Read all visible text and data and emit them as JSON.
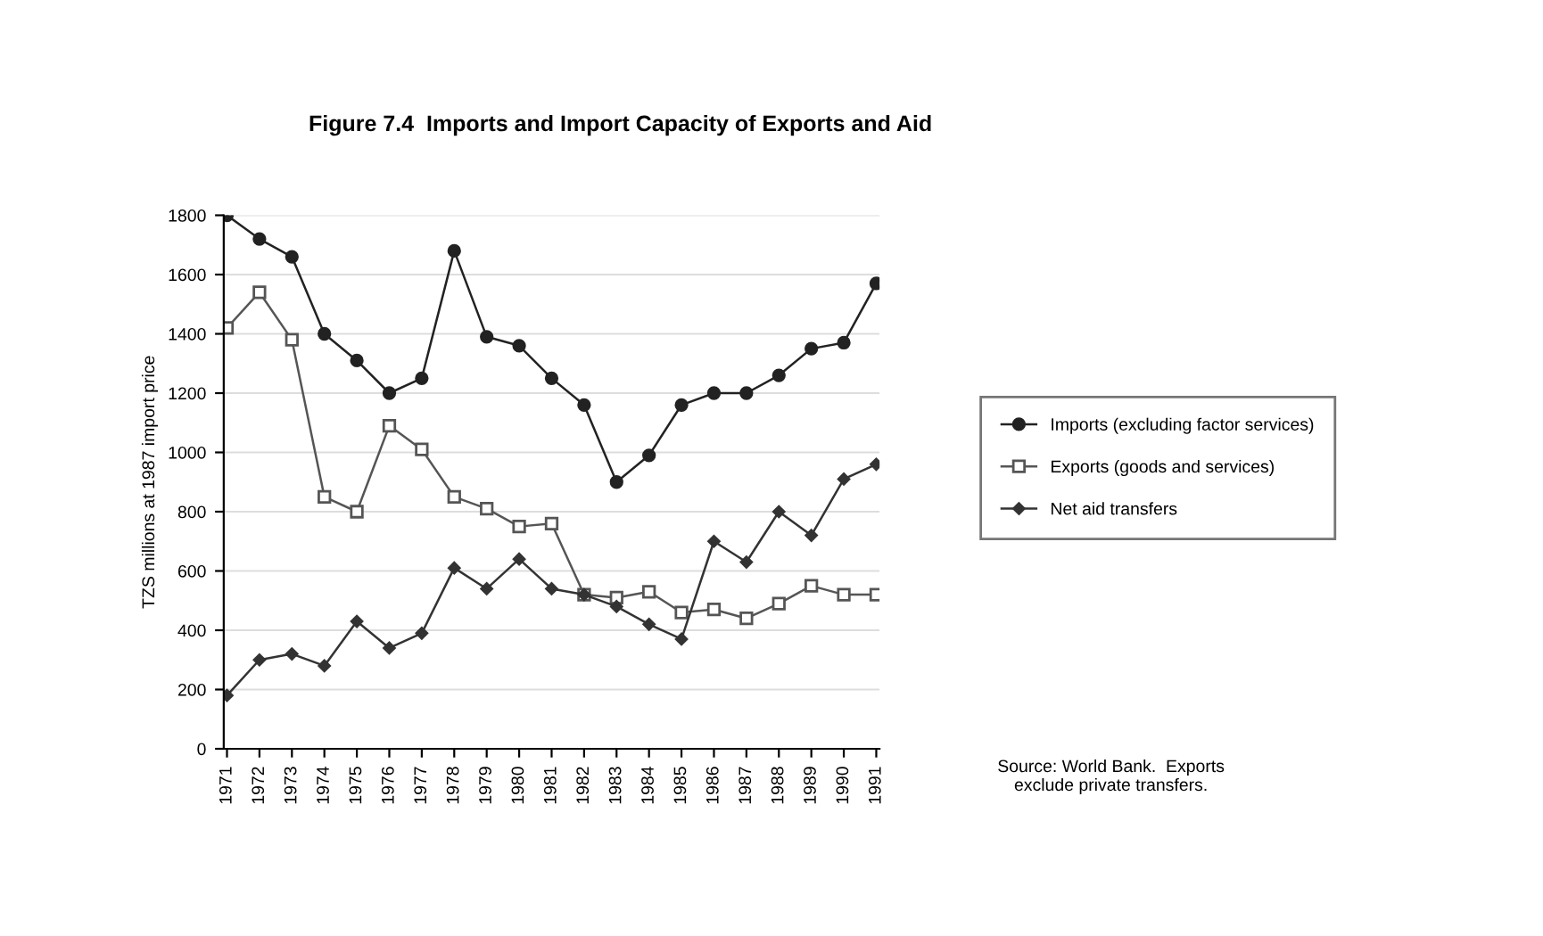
{
  "chart_data": {
    "type": "line",
    "title": "Figure 7.4  Imports and Import Capacity of Exports and Aid",
    "ylabel": "TZS millions at 1987 import price",
    "categories": [
      "1971",
      "1972",
      "1973",
      "1974",
      "1975",
      "1976",
      "1977",
      "1978",
      "1979",
      "1980",
      "1981",
      "1982",
      "1983",
      "1984",
      "1985",
      "1986",
      "1987",
      "1988",
      "1989",
      "1990",
      "1991"
    ],
    "series": [
      {
        "name": "Imports (excluding factor services)",
        "color": "#222222",
        "marker": "circle",
        "values": [
          1800,
          1720,
          1660,
          1400,
          1310,
          1200,
          1250,
          1680,
          1390,
          1360,
          1250,
          1160,
          900,
          990,
          1160,
          1200,
          1200,
          1260,
          1350,
          1370,
          1570
        ]
      },
      {
        "name": "Exports (goods and services)",
        "color": "#555555",
        "marker": "square",
        "values": [
          1420,
          1540,
          1380,
          850,
          800,
          1090,
          1010,
          850,
          810,
          750,
          760,
          520,
          510,
          530,
          460,
          470,
          440,
          490,
          550,
          520,
          520
        ]
      },
      {
        "name": "Net aid transfers",
        "color": "#333333",
        "marker": "diamond",
        "values": [
          180,
          300,
          320,
          280,
          430,
          340,
          390,
          610,
          540,
          640,
          540,
          520,
          480,
          420,
          370,
          700,
          630,
          800,
          720,
          910,
          960
        ]
      }
    ],
    "ylim": [
      0,
      1800
    ],
    "yticks": [
      0,
      200,
      400,
      600,
      800,
      1000,
      1200,
      1400,
      1600,
      1800
    ],
    "grid": "y",
    "legend": "right",
    "annotations": [
      "Source: World Bank.  Exports\nexclude private transfers."
    ]
  }
}
